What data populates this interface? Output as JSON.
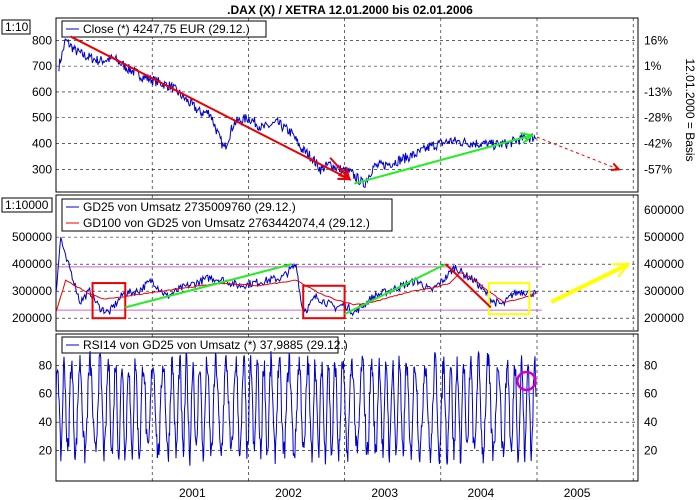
{
  "title": ".DAX (X) / XETRA 12.01.2000 bis 02.01.2006",
  "x_axis": {
    "labels": [
      "2001",
      "2002",
      "2003",
      "2004",
      "2005"
    ],
    "years": [
      2001,
      2002,
      2003,
      2004,
      2005
    ]
  },
  "colors": {
    "price": "#0000cc",
    "trend_red": "#ee0000",
    "trend_green": "#22ee22",
    "yellow": "#ffff00",
    "purple_line": "#cc66cc",
    "magenta_circle": "#cc00cc"
  },
  "chart_data": [
    {
      "type": "line",
      "panel": "price",
      "scale_label": "1:10",
      "legend": "Close (*) 4247,75 EUR (29.12.)",
      "right_axis_title": "12.01.2000 = Basis",
      "left_ticks": [
        800,
        700,
        600,
        500,
        400,
        300
      ],
      "right_ticks": [
        "16%",
        "1%",
        "-13%",
        "-28%",
        "-42%",
        "-57%"
      ],
      "ylim": [
        220,
        840
      ],
      "x": [
        2000.03,
        2000.1,
        2000.2,
        2000.3,
        2000.45,
        2000.6,
        2000.75,
        2000.9,
        2001.05,
        2001.2,
        2001.35,
        2001.5,
        2001.6,
        2001.7,
        2001.75,
        2001.85,
        2002.0,
        2002.15,
        2002.3,
        2002.45,
        2002.55,
        2002.65,
        2002.75,
        2002.85,
        2002.95,
        2003.05,
        2003.15,
        2003.2,
        2003.3,
        2003.45,
        2003.6,
        2003.75,
        2003.9,
        2004.1,
        2004.25,
        2004.4,
        2004.55,
        2004.7,
        2004.85,
        2004.99
      ],
      "y": [
        700,
        800,
        760,
        740,
        720,
        730,
        690,
        660,
        640,
        620,
        570,
        520,
        520,
        420,
        380,
        480,
        500,
        460,
        480,
        440,
        380,
        350,
        300,
        320,
        300,
        290,
        260,
        240,
        310,
        320,
        340,
        360,
        390,
        410,
        405,
        400,
        395,
        400,
        420,
        425
      ],
      "annotations": [
        {
          "type": "arrow",
          "color": "red",
          "from": [
            2000.15,
            815
          ],
          "to": [
            2003.05,
            262
          ]
        },
        {
          "type": "arrow",
          "color": "red",
          "from": [
            2002.85,
            345
          ],
          "to": [
            2003.05,
            262
          ]
        },
        {
          "type": "arrow",
          "color": "green",
          "from": [
            2003.1,
            245
          ],
          "to": [
            2004.95,
            432
          ]
        },
        {
          "type": "dashed-arrow",
          "color": "red",
          "from": [
            2005.0,
            425
          ],
          "to": [
            2005.85,
            300
          ]
        }
      ]
    },
    {
      "type": "line",
      "panel": "volume",
      "scale_label": "1:10000",
      "series": [
        {
          "name": "GD25 von Umsatz 2735009760 (29.12.)",
          "color": "#0000cc",
          "x": [
            2000.0,
            2000.05,
            2000.1,
            2000.15,
            2000.25,
            2000.35,
            2000.45,
            2000.55,
            2000.7,
            2000.85,
            2001.0,
            2001.15,
            2001.3,
            2001.45,
            2001.6,
            2001.75,
            2001.9,
            2002.05,
            2002.2,
            2002.35,
            2002.5,
            2002.55,
            2002.6,
            2002.7,
            2002.8,
            2002.9,
            2003.0,
            2003.1,
            2003.2,
            2003.3,
            2003.45,
            2003.6,
            2003.75,
            2003.9,
            2004.05,
            2004.15,
            2004.25,
            2004.35,
            2004.45,
            2004.55,
            2004.65,
            2004.75,
            2004.85,
            2004.99
          ],
          "y": [
            300000,
            500000,
            420000,
            380000,
            260000,
            300000,
            240000,
            220000,
            290000,
            300000,
            340000,
            280000,
            310000,
            330000,
            350000,
            340000,
            320000,
            330000,
            340000,
            350000,
            400000,
            250000,
            230000,
            280000,
            260000,
            240000,
            250000,
            220000,
            250000,
            280000,
            300000,
            320000,
            340000,
            300000,
            350000,
            390000,
            360000,
            340000,
            300000,
            260000,
            250000,
            290000,
            300000,
            290000
          ]
        },
        {
          "name": "GD100 von GD25 von Umsatz 2763442074,4 (29.12.)",
          "color": "#ee0000",
          "x": [
            2000.0,
            2000.1,
            2000.2,
            2000.35,
            2000.5,
            2000.7,
            2000.9,
            2001.1,
            2001.3,
            2001.5,
            2001.7,
            2001.9,
            2002.1,
            2002.3,
            2002.5,
            2002.6,
            2002.75,
            2002.9,
            2003.1,
            2003.3,
            2003.5,
            2003.7,
            2003.9,
            2004.1,
            2004.2,
            2004.35,
            2004.5,
            2004.65,
            2004.8,
            2004.99
          ],
          "y": [
            220000,
            340000,
            320000,
            290000,
            270000,
            280000,
            290000,
            300000,
            310000,
            320000,
            330000,
            325000,
            320000,
            330000,
            340000,
            320000,
            290000,
            270000,
            250000,
            260000,
            280000,
            300000,
            310000,
            330000,
            370000,
            340000,
            300000,
            260000,
            270000,
            290000
          ]
        }
      ],
      "left_ticks": [
        500000,
        400000,
        300000,
        200000
      ],
      "right_ticks": [
        600000,
        500000,
        400000,
        300000,
        200000
      ],
      "ylim": [
        160000,
        630000
      ],
      "reference_lines": [
        390000,
        230000
      ],
      "annotations": [
        {
          "type": "box",
          "color": "red",
          "x": [
            2000.38,
            2000.72
          ],
          "y": [
            200000,
            330000
          ]
        },
        {
          "type": "box",
          "color": "red",
          "x": [
            2002.57,
            2003.0
          ],
          "y": [
            200000,
            320000
          ]
        },
        {
          "type": "box",
          "color": "yellow",
          "x": [
            2004.5,
            2004.92
          ],
          "y": [
            215000,
            330000
          ]
        },
        {
          "type": "line",
          "color": "green",
          "from": [
            2000.72,
            240000
          ],
          "to": [
            2002.45,
            400000
          ]
        },
        {
          "type": "line",
          "color": "green",
          "from": [
            2003.0,
            215000
          ],
          "to": [
            2004.05,
            400000
          ]
        },
        {
          "type": "line",
          "color": "red",
          "from": [
            2004.05,
            400000
          ],
          "to": [
            2004.52,
            240000
          ]
        },
        {
          "type": "arrow",
          "color": "yellow",
          "from": [
            2005.15,
            260000
          ],
          "to": [
            2005.95,
            400000
          ]
        }
      ]
    },
    {
      "type": "line",
      "panel": "rsi",
      "legend": "RSI14 von GD25 von Umsatz (*) 37,9885 (29.12.)",
      "left_ticks": [
        80,
        60,
        40,
        20
      ],
      "right_ticks": [
        80,
        60,
        40,
        20
      ],
      "ylim": [
        0,
        95
      ],
      "highlight": {
        "x": 2004.89,
        "y": 69
      }
    }
  ]
}
